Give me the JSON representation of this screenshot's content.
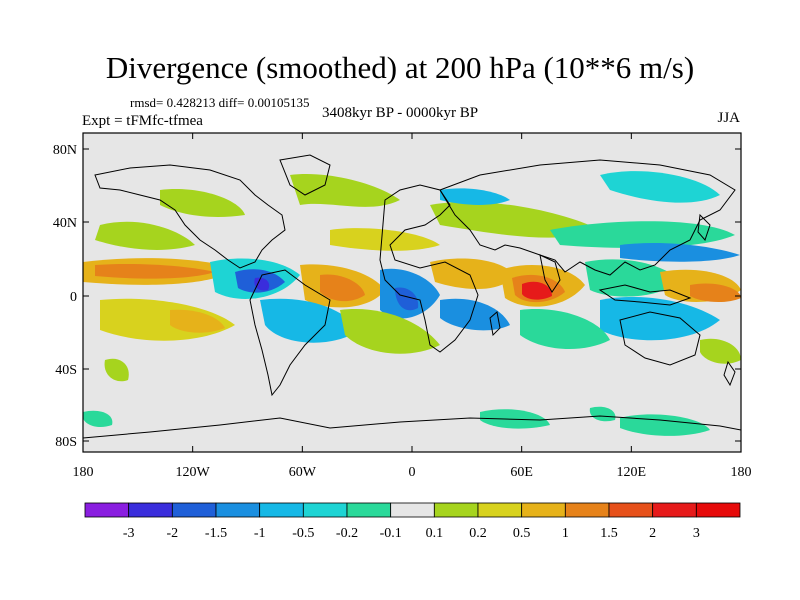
{
  "title": "Divergence (smoothed) at 200 hPa (10**6 m/s)",
  "stats": "rmsd= 0.428213 diff= 0.00105135",
  "experiment": "Expt = tFMfc-tfmea",
  "period": "3408kyr BP - 0000kyr BP",
  "season": "JJA",
  "lat_ticks": [
    "80N",
    "40N",
    "0",
    "40S",
    "80S"
  ],
  "lon_ticks": [
    "180",
    "120W",
    "60W",
    "0",
    "60E",
    "120E",
    "180"
  ],
  "colorbar": {
    "labels": [
      "-3",
      "-2",
      "-1.5",
      "-1",
      "-0.5",
      "-0.2",
      "-0.1",
      "0.1",
      "0.2",
      "0.5",
      "1",
      "1.5",
      "2",
      "3"
    ],
    "colors": [
      "#8a1ee0",
      "#3a2ddc",
      "#1f5fd8",
      "#1a8fe0",
      "#16b8e6",
      "#1ed4d4",
      "#2ad99a",
      "#e6e6e6",
      "#a6d41e",
      "#d8d21e",
      "#e6b21a",
      "#e6821a",
      "#e6501a",
      "#e61a1a",
      "#e60a0a"
    ]
  },
  "map_colors": {
    "background": "#e6e6e6",
    "land_line": "#000000"
  }
}
